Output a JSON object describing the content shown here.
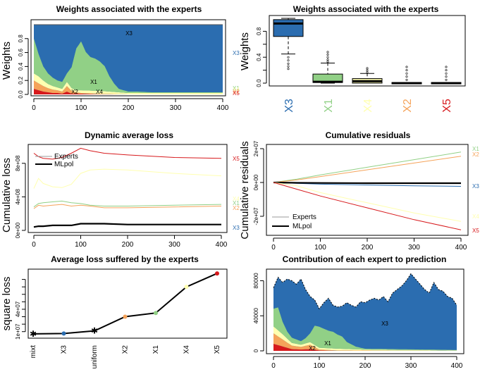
{
  "colors": {
    "X1": "#91d086",
    "X2": "#f5a35a",
    "X3": "#2b6db0",
    "X4": "#ffffb0",
    "X5": "#d7191c",
    "mlpol": "#000000",
    "red": "#e3322a",
    "grey": "#999999"
  },
  "chart_data": [
    {
      "id": "p1",
      "type": "area",
      "title": "Weights associated with the experts",
      "ylabel": "Weights",
      "xlim": [
        0,
        400
      ],
      "ylim": [
        0,
        1
      ],
      "xticks": [
        0,
        100,
        200,
        300,
        400
      ],
      "yticks": [
        "0.0",
        "0.2",
        "0.4",
        "0.6",
        "0.8"
      ],
      "series": [
        {
          "name": "X5",
          "x": [
            0,
            10,
            20,
            30,
            40,
            50,
            60,
            70,
            80,
            90,
            100,
            140,
            200,
            400
          ],
          "values": [
            0.08,
            0.06,
            0.04,
            0.03,
            0.02,
            0.02,
            0.01,
            0.04,
            0.01,
            0.01,
            0.01,
            0.0,
            0.0,
            0.0
          ]
        },
        {
          "name": "X2",
          "x": [
            0,
            10,
            20,
            30,
            40,
            50,
            60,
            70,
            80,
            90,
            100,
            140,
            200,
            400
          ],
          "values": [
            0.12,
            0.1,
            0.08,
            0.06,
            0.05,
            0.04,
            0.03,
            0.08,
            0.04,
            0.02,
            0.01,
            0.01,
            0.0,
            0.0
          ]
        },
        {
          "name": "X4",
          "x": [
            0,
            10,
            20,
            30,
            40,
            50,
            60,
            70,
            80,
            90,
            100,
            140,
            200,
            400
          ],
          "values": [
            0.1,
            0.1,
            0.08,
            0.06,
            0.05,
            0.04,
            0.04,
            0.06,
            0.04,
            0.03,
            0.04,
            0.04,
            0.02,
            0.02
          ]
        },
        {
          "name": "X1",
          "x": [
            0,
            10,
            20,
            30,
            40,
            50,
            60,
            70,
            80,
            90,
            100,
            110,
            120,
            130,
            140,
            150,
            160,
            170,
            180,
            200,
            220,
            250,
            300,
            350,
            400
          ],
          "values": [
            0.5,
            0.32,
            0.2,
            0.15,
            0.12,
            0.1,
            0.1,
            0.12,
            0.3,
            0.6,
            0.7,
            0.55,
            0.48,
            0.46,
            0.42,
            0.36,
            0.22,
            0.12,
            0.05,
            0.02,
            0.02,
            0.01,
            0.01,
            0.01,
            0.01
          ]
        },
        {
          "name": "X3",
          "x": [
            0,
            400
          ],
          "values": [
            0.2,
            0.96
          ]
        }
      ],
      "labels": [
        "X3",
        "X1",
        "X2",
        "X4"
      ],
      "right_labels": [
        "X3",
        "X1",
        "X4",
        "X2",
        "X5"
      ]
    },
    {
      "id": "p2",
      "type": "box",
      "title": "Weights associated with the experts",
      "ylabel": "Weights",
      "ylim": [
        0,
        1
      ],
      "yticks": [
        "0.0",
        "0.4",
        "0.8"
      ],
      "yticks_minor": [
        "0.2",
        "0.6"
      ],
      "categories": [
        "X3",
        "X1",
        "X4",
        "X2",
        "X5"
      ],
      "boxes": [
        {
          "q1": 0.72,
          "median": 0.92,
          "q3": 0.98,
          "lo": 0.45,
          "hi": 1.0
        },
        {
          "q1": 0.01,
          "median": 0.02,
          "q3": 0.14,
          "lo": 0.0,
          "hi": 0.31
        },
        {
          "q1": 0.0,
          "median": 0.03,
          "q3": 0.07,
          "lo": 0.0,
          "hi": 0.15
        },
        {
          "q1": 0.0,
          "median": 0.0,
          "q3": 0.01,
          "lo": 0.0,
          "hi": 0.01
        },
        {
          "q1": 0.0,
          "median": 0.0,
          "q3": 0.01,
          "lo": 0.0,
          "hi": 0.01
        }
      ]
    },
    {
      "id": "p3",
      "type": "line",
      "title": "Dynamic average loss",
      "ylabel": "Cumulative loss",
      "xlim": [
        0,
        400
      ],
      "ylim": [
        0,
        1000000000
      ],
      "xticks": [
        0,
        100,
        200,
        300,
        400
      ],
      "yticks": [
        "0e+00",
        "4e+08",
        "8e+08"
      ],
      "series": [
        {
          "name": "X5",
          "x": [
            0,
            10,
            20,
            40,
            60,
            80,
            100,
            120,
            150,
            200,
            300,
            400
          ],
          "values": [
            920000000,
            880000000,
            860000000,
            850000000,
            870000000,
            920000000,
            980000000,
            950000000,
            920000000,
            900000000,
            870000000,
            860000000
          ]
        },
        {
          "name": "X4",
          "x": [
            0,
            10,
            20,
            40,
            60,
            80,
            100,
            120,
            150,
            200,
            300,
            400
          ],
          "values": [
            500000000,
            620000000,
            560000000,
            520000000,
            510000000,
            550000000,
            680000000,
            720000000,
            730000000,
            720000000,
            680000000,
            650000000
          ]
        },
        {
          "name": "X1",
          "x": [
            0,
            10,
            20,
            40,
            60,
            80,
            100,
            120,
            150,
            200,
            300,
            400
          ],
          "values": [
            280000000,
            320000000,
            330000000,
            340000000,
            350000000,
            330000000,
            320000000,
            300000000,
            290000000,
            290000000,
            300000000,
            310000000
          ]
        },
        {
          "name": "X2",
          "x": [
            0,
            10,
            20,
            40,
            60,
            80,
            100,
            120,
            150,
            200,
            300,
            400
          ],
          "values": [
            260000000,
            300000000,
            290000000,
            300000000,
            310000000,
            290000000,
            300000000,
            290000000,
            270000000,
            270000000,
            280000000,
            290000000
          ]
        },
        {
          "name": "X3",
          "x": [
            0,
            10,
            20,
            40,
            60,
            80,
            100,
            150,
            200,
            300,
            400
          ],
          "values": [
            40000000,
            50000000,
            50000000,
            60000000,
            60000000,
            60000000,
            80000000,
            80000000,
            70000000,
            70000000,
            70000000
          ]
        },
        {
          "name": "MLpol",
          "x": [
            0,
            10,
            20,
            40,
            60,
            80,
            100,
            150,
            200,
            300,
            400
          ],
          "values": [
            40000000,
            50000000,
            50000000,
            60000000,
            60000000,
            60000000,
            80000000,
            80000000,
            70000000,
            70000000,
            70000000
          ]
        }
      ],
      "legend": [
        "Experts",
        "MLpol"
      ],
      "right_labels": [
        "X5",
        "X4",
        "X1",
        "X2",
        "X3"
      ]
    },
    {
      "id": "p4",
      "type": "line",
      "title": "Cumulative residuals",
      "ylabel": "Cumulative residuals",
      "xlim": [
        0,
        400
      ],
      "ylim": [
        -30000000,
        20000000
      ],
      "xticks": [
        0,
        100,
        200,
        300,
        400
      ],
      "yticks": [
        "-2e+07",
        "0e+00",
        "2e+07"
      ],
      "series": [
        {
          "name": "X1",
          "x": [
            0,
            50,
            100,
            200,
            300,
            400
          ],
          "values": [
            0,
            2000000,
            4500000,
            9000000,
            13500000,
            18000000
          ]
        },
        {
          "name": "X2",
          "x": [
            0,
            50,
            100,
            200,
            300,
            400
          ],
          "values": [
            0,
            1500000,
            3500000,
            7500000,
            11500000,
            15500000
          ]
        },
        {
          "name": "X3",
          "x": [
            0,
            50,
            100,
            200,
            300,
            400
          ],
          "values": [
            0,
            -500000,
            -1000000,
            -1500000,
            -2000000,
            -2300000
          ]
        },
        {
          "name": "MLpol",
          "x": [
            0,
            50,
            100,
            200,
            300,
            400
          ],
          "values": [
            0,
            -200000,
            -300000,
            -400000,
            -400000,
            -400000
          ]
        },
        {
          "name": "X4",
          "x": [
            0,
            50,
            100,
            200,
            300,
            400
          ],
          "values": [
            0,
            -2000000,
            -6000000,
            -12000000,
            -18000000,
            -23000000
          ]
        },
        {
          "name": "X5",
          "x": [
            0,
            50,
            100,
            200,
            300,
            400
          ],
          "values": [
            0,
            -4000000,
            -8000000,
            -15000000,
            -22000000,
            -28000000
          ]
        }
      ],
      "legend": [
        "Experts",
        "MLpol"
      ],
      "right_labels": [
        "X1",
        "X2",
        "X3",
        "X4",
        "X5"
      ]
    },
    {
      "id": "p5",
      "type": "line",
      "title": "Average loss suffered by the experts",
      "ylabel": "square loss",
      "ylim": [
        0,
        90000000
      ],
      "yticks": [
        "1e+07",
        "4e+07"
      ],
      "yticks_minor": [
        "2e+07",
        "3e+07",
        "5e+07",
        "6e+07",
        "7e+07",
        "8e+07"
      ],
      "categories": [
        "mixt",
        "X3",
        "uniform",
        "X2",
        "X1",
        "X4",
        "X5"
      ],
      "values": [
        7000000,
        7500000,
        11000000,
        30000000,
        35000000,
        70000000,
        88000000
      ]
    },
    {
      "id": "p6",
      "type": "area",
      "title": "Contribution of each expert to prediction",
      "xlim": [
        0,
        400
      ],
      "ylim": [
        0,
        90000
      ],
      "xticks": [
        0,
        100,
        200,
        300,
        400
      ],
      "yticks": [
        "0",
        "40000",
        "80000"
      ],
      "total": {
        "x": [
          0,
          10,
          20,
          30,
          40,
          50,
          60,
          70,
          80,
          90,
          100,
          110,
          120,
          130,
          140,
          150,
          160,
          170,
          180,
          190,
          200,
          210,
          220,
          230,
          240,
          250,
          260,
          270,
          280,
          290,
          300,
          310,
          320,
          330,
          340,
          350,
          360,
          370,
          380,
          390,
          400
        ],
        "values": [
          72000,
          84000,
          78000,
          82000,
          80000,
          76000,
          82000,
          70000,
          62000,
          58000,
          48000,
          55000,
          60000,
          52000,
          50000,
          51000,
          55000,
          52000,
          50000,
          56000,
          55000,
          58000,
          60000,
          58000,
          62000,
          56000,
          66000,
          70000,
          74000,
          80000,
          88000,
          82000,
          76000,
          70000,
          66000,
          78000,
          70000,
          68000,
          62000,
          60000,
          52000
        ]
      },
      "series": [
        {
          "name": "X5",
          "x": [
            0,
            20,
            40,
            60,
            80,
            100,
            140,
            400
          ],
          "values": [
            8000,
            5000,
            2000,
            1500,
            2000,
            500,
            0,
            0
          ]
        },
        {
          "name": "X2",
          "x": [
            0,
            20,
            40,
            60,
            80,
            100,
            140,
            400
          ],
          "values": [
            12000,
            8000,
            4000,
            3000,
            5000,
            1000,
            500,
            0
          ]
        },
        {
          "name": "X4",
          "x": [
            0,
            20,
            40,
            60,
            80,
            100,
            140,
            200,
            400
          ],
          "values": [
            8000,
            6000,
            3000,
            2500,
            3000,
            2000,
            2000,
            1000,
            500
          ]
        },
        {
          "name": "X1",
          "x": [
            0,
            10,
            20,
            30,
            40,
            50,
            60,
            70,
            80,
            90,
            100,
            110,
            120,
            130,
            140,
            150,
            160,
            180,
            200,
            400
          ],
          "values": [
            20000,
            26000,
            14000,
            8000,
            6000,
            5000,
            4000,
            6000,
            10000,
            22000,
            24000,
            22000,
            20000,
            19000,
            16000,
            14000,
            8000,
            3000,
            1000,
            500
          ]
        }
      ],
      "labels": [
        "X3",
        "X1",
        "X2"
      ]
    }
  ]
}
